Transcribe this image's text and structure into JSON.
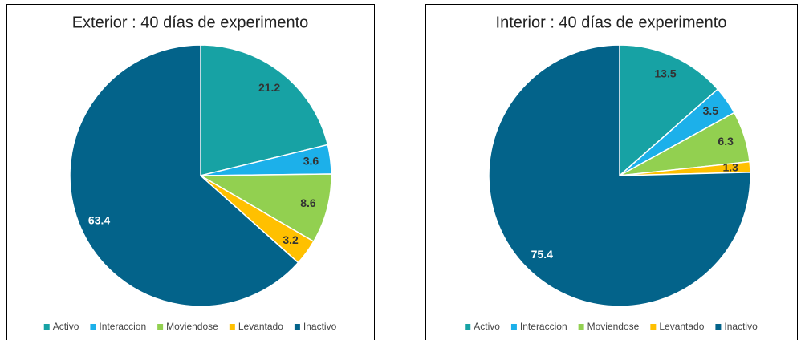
{
  "chart_data": [
    {
      "type": "pie",
      "title": "Exterior : 40 días de experimento",
      "categories": [
        "Activo",
        "Interaccion",
        "Moviendose",
        "Levantado",
        "Inactivo"
      ],
      "values": [
        21.2,
        3.6,
        8.6,
        3.2,
        63.4
      ],
      "colors": [
        "#17a2a4",
        "#1cb0ea",
        "#92d050",
        "#ffc000",
        "#03638a"
      ]
    },
    {
      "type": "pie",
      "title": "Interior : 40 días de experimento",
      "categories": [
        "Activo",
        "Interaccion",
        "Moviendose",
        "Levantado",
        "Inactivo"
      ],
      "values": [
        13.5,
        3.5,
        6.3,
        1.3,
        75.4
      ],
      "colors": [
        "#17a2a4",
        "#1cb0ea",
        "#92d050",
        "#ffc000",
        "#03638a"
      ]
    }
  ]
}
